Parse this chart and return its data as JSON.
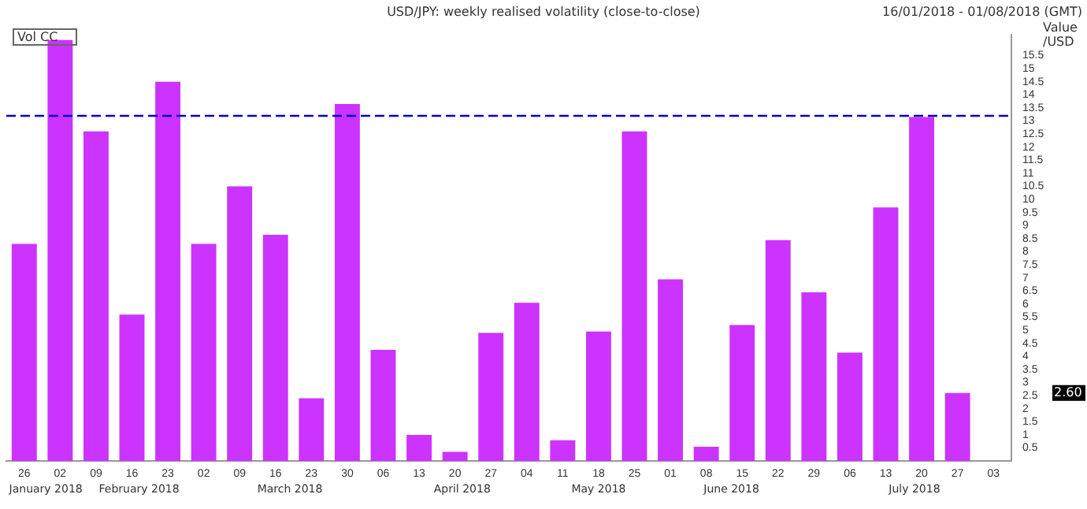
{
  "chart_data": {
    "type": "bar",
    "title": "USD/JPY: weekly realised volatility (close-to-close)",
    "ylabel": "Value /USD",
    "categories": [
      "26",
      "02",
      "09",
      "16",
      "23",
      "02",
      "09",
      "16",
      "23",
      "30",
      "06",
      "13",
      "20",
      "27",
      "04",
      "11",
      "18",
      "25",
      "01",
      "08",
      "15",
      "22",
      "29",
      "06",
      "13",
      "20",
      "27",
      "03"
    ],
    "values": [
      8.3,
      16.1,
      12.6,
      5.6,
      14.5,
      8.3,
      10.5,
      8.65,
      2.4,
      13.65,
      4.25,
      1.0,
      0.35,
      4.9,
      6.05,
      0.8,
      4.95,
      12.6,
      6.95,
      0.55,
      5.2,
      8.45,
      6.45,
      4.15,
      9.7,
      13.15,
      2.6,
      null
    ],
    "color": "#cc33ff",
    "ylim": [
      0,
      16.3
    ],
    "yticks": [
      0.5,
      1,
      1.5,
      2,
      2.5,
      3,
      3.5,
      4,
      4.5,
      5,
      5.5,
      6,
      6.5,
      7,
      7.5,
      8,
      8.5,
      9,
      9.5,
      10,
      10.5,
      11,
      11.5,
      12,
      12.5,
      13,
      13.5,
      14,
      14.5,
      15,
      15.5
    ],
    "ref_lines": [
      {
        "axis": "y",
        "value": 13.2,
        "color": "#0000cc",
        "line_style": "dashed"
      }
    ],
    "annotations": [
      "16/01/2018 - 01/08/2018 (GMT)",
      "Vol CC",
      "2.60",
      "January 2018",
      "February 2018",
      "March 2018",
      "April 2018",
      "May 2018",
      "June 2018",
      "July 2018"
    ],
    "grid": false,
    "legend": false
  }
}
